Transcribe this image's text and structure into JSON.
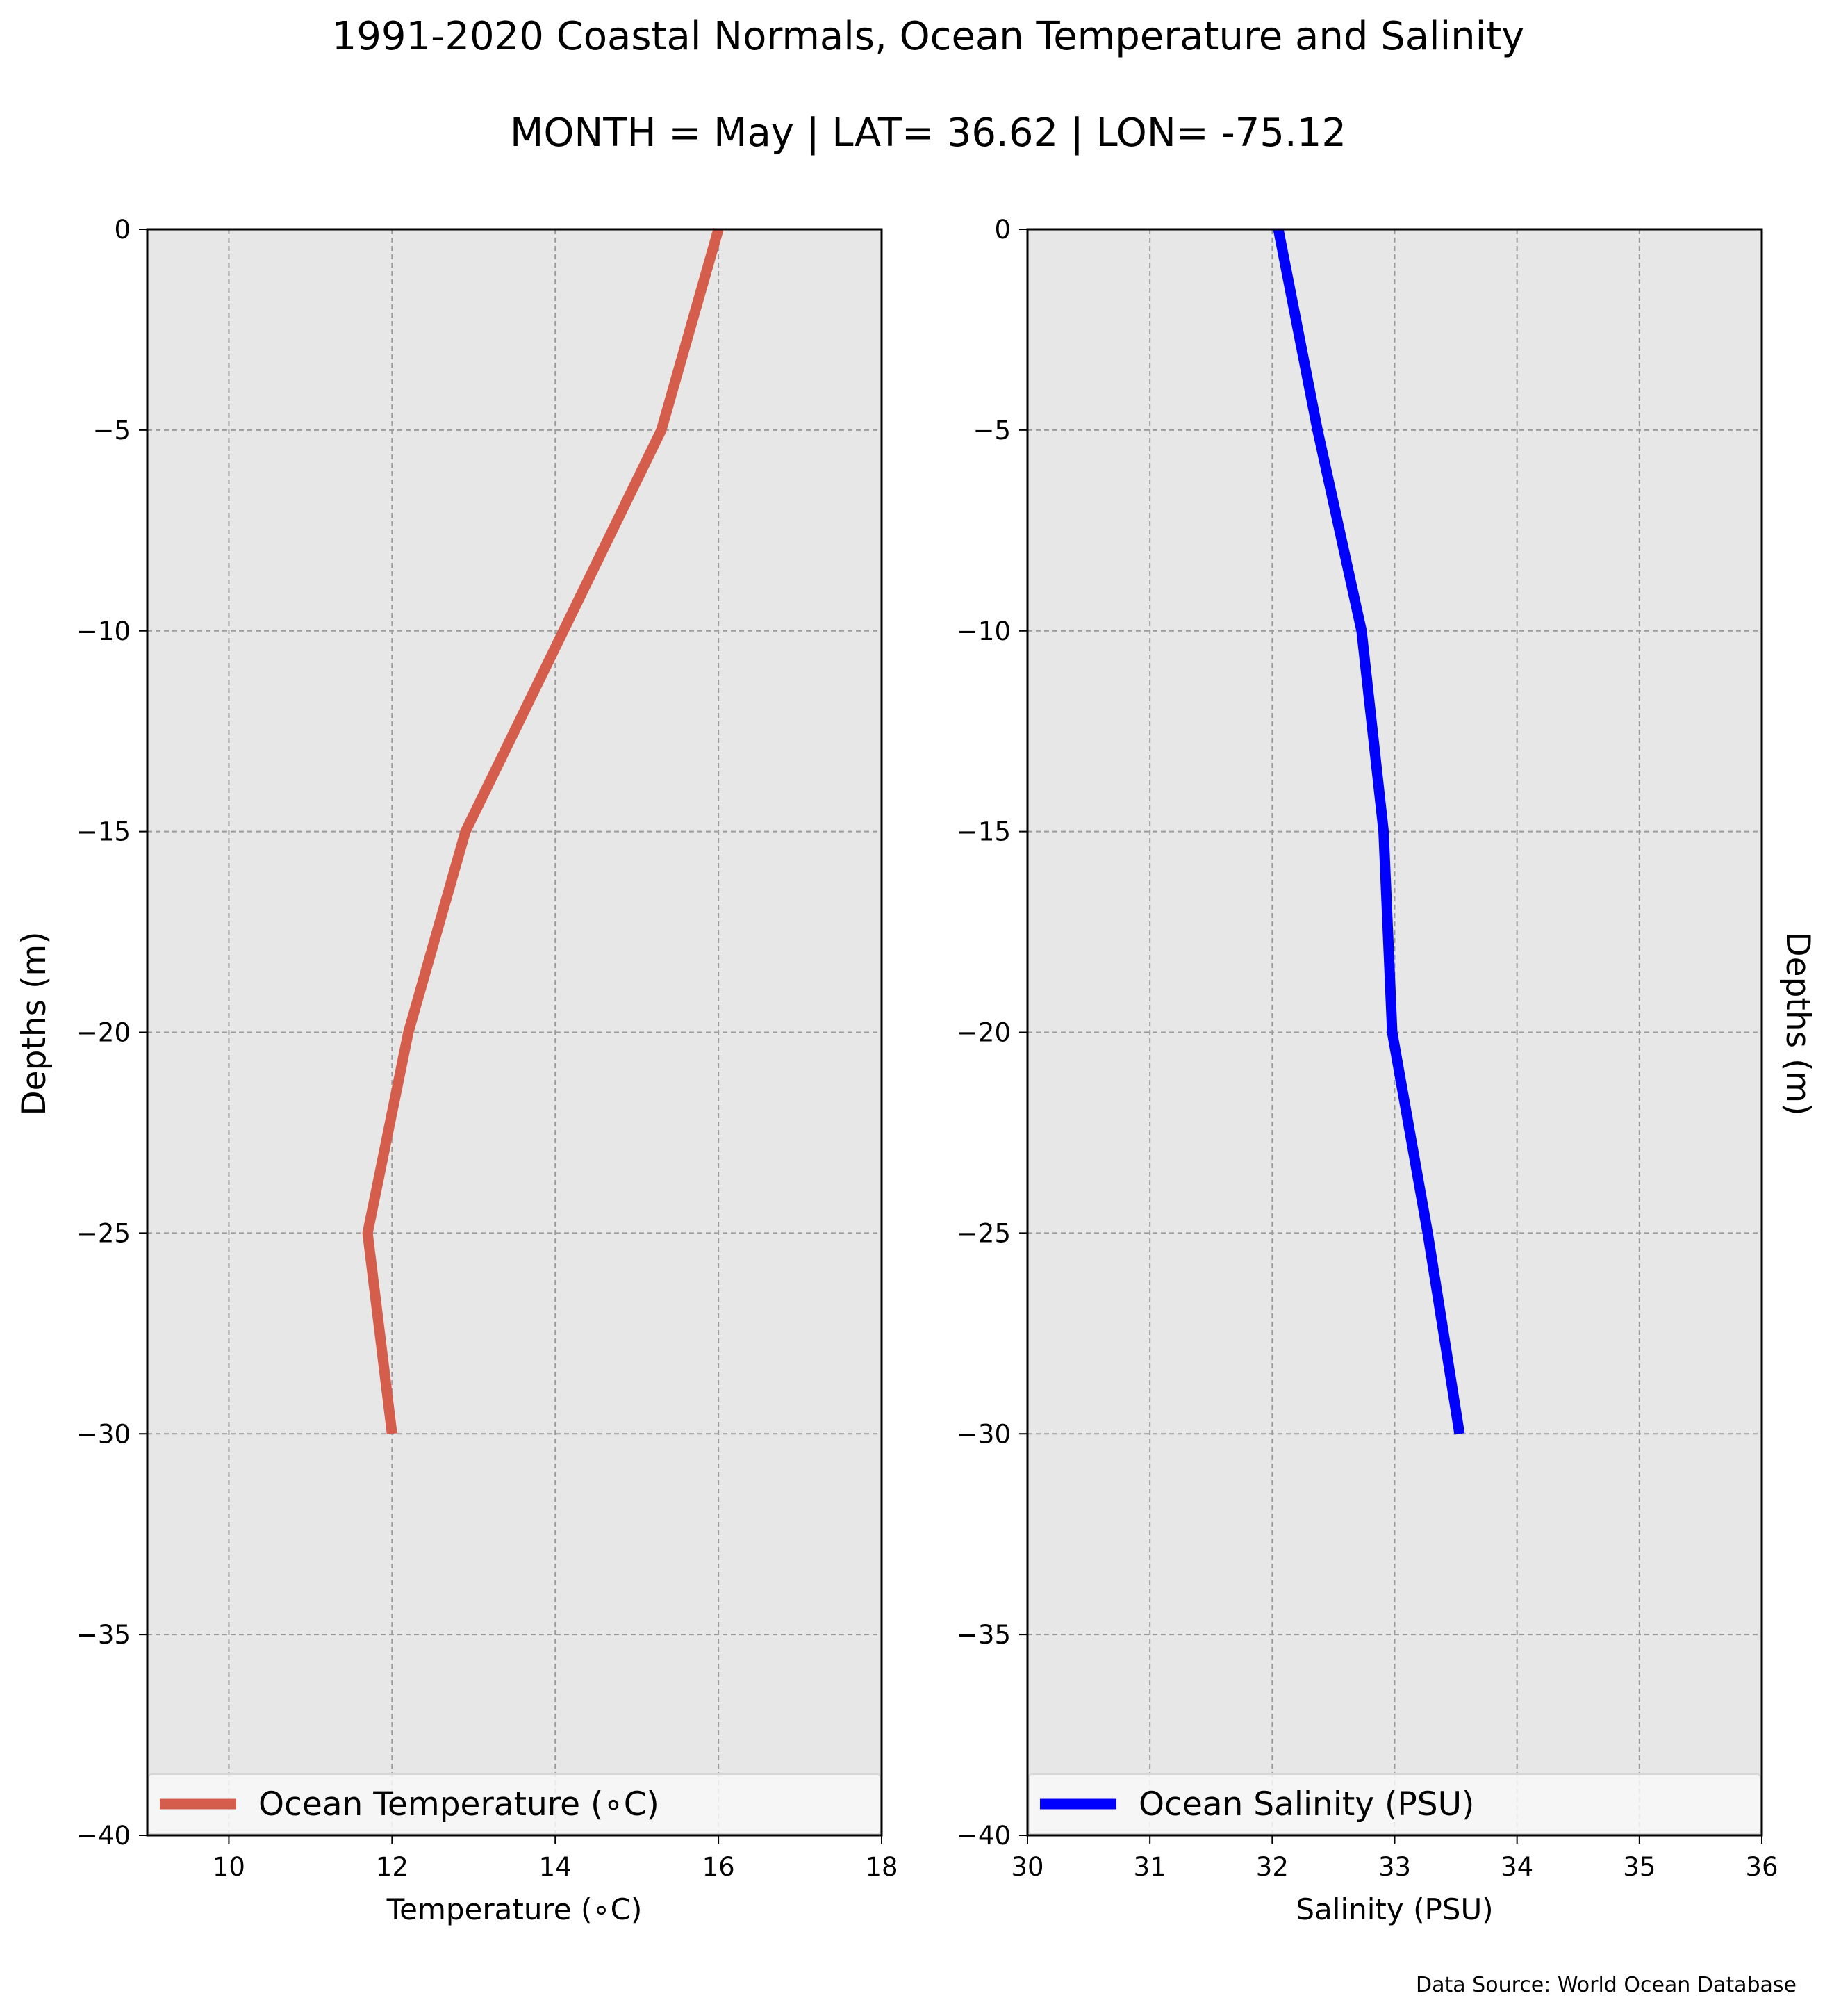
{
  "title_line1": "1991-2020 Coastal Normals, Ocean Temperature and Salinity",
  "title_line2": "MONTH = May | LAT= 36.62 | LON= -75.12",
  "source_note": "Data Source: World Ocean Database",
  "colors": {
    "background": "#ffffff",
    "plot_background": "#e7e7e7",
    "grid": "#9b9b9b",
    "temperature_line": "#d55d4c",
    "salinity_line": "#0000ff"
  },
  "chart_data": [
    {
      "type": "line",
      "panel": "temperature",
      "xlabel": "Temperature ($^\\circ$C)",
      "xlabel_display": "Temperature (∘C)",
      "ylabel": "Depths (m)",
      "xlim": [
        9,
        18
      ],
      "ylim": [
        -40,
        0
      ],
      "x_ticks": [
        10,
        12,
        14,
        16,
        18
      ],
      "x_tick_labels": [
        "10",
        "12",
        "14",
        "16",
        "18"
      ],
      "y_ticks": [
        0,
        -5,
        -10,
        -15,
        -20,
        -25,
        -30,
        -35,
        -40
      ],
      "y_tick_labels": [
        "0",
        "−5",
        "−10",
        "−15",
        "−20",
        "−25",
        "−30",
        "−35",
        "−40"
      ],
      "grid": true,
      "legend_position": "bottom",
      "series": [
        {
          "name": "Ocean Temperature (∘C)",
          "x": [
            16.0,
            15.3,
            14.1,
            12.9,
            12.2,
            11.7,
            12.0
          ],
          "y": [
            0,
            -5,
            -10,
            -15,
            -20,
            -25,
            -30
          ]
        }
      ]
    },
    {
      "type": "line",
      "panel": "salinity",
      "xlabel": "Salinity (PSU)",
      "ylabel": "Depths (m)",
      "xlim": [
        30,
        36
      ],
      "ylim": [
        -40,
        0
      ],
      "x_ticks": [
        30,
        31,
        32,
        33,
        34,
        35,
        36
      ],
      "x_tick_labels": [
        "30",
        "31",
        "32",
        "33",
        "34",
        "35",
        "36"
      ],
      "y_ticks": [
        0,
        -5,
        -10,
        -15,
        -20,
        -25,
        -30,
        -35,
        -40
      ],
      "y_tick_labels": [
        "0",
        "−5",
        "−10",
        "−15",
        "−20",
        "−25",
        "−30",
        "−35",
        "−40"
      ],
      "grid": true,
      "legend_position": "bottom",
      "series": [
        {
          "name": "Ocean Salinity (PSU)",
          "x": [
            32.05,
            32.37,
            32.73,
            32.91,
            32.98,
            33.27,
            33.53
          ],
          "y": [
            0,
            -5,
            -10,
            -15,
            -20,
            -25,
            -30
          ]
        }
      ]
    }
  ]
}
